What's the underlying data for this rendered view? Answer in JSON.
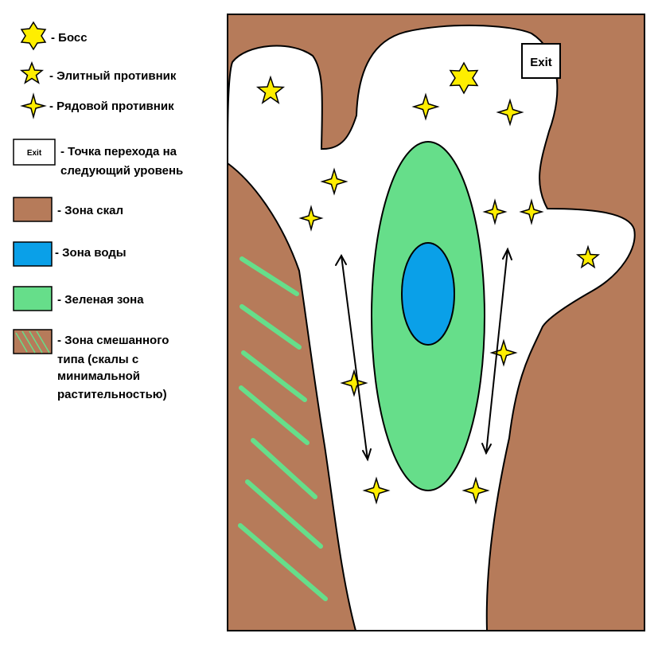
{
  "colors": {
    "rock": "#b67b5a",
    "water": "#0aa0e8",
    "green": "#66de8a",
    "star": "#ffee00",
    "outline": "#000000",
    "path": "#ffffff"
  },
  "legend": {
    "boss": "- Босс",
    "elite": "- Элитный противник",
    "regular": "- Рядовой противник",
    "exit_icon": "Exit",
    "exit_line1": "- Точка перехода на",
    "exit_line2": "следующий уровень",
    "rock": "- Зона скал",
    "water": "- Зона воды",
    "green": "- Зеленая зона",
    "mixed_line1": "- Зона смешанного",
    "mixed_line2": "типа (скалы с",
    "mixed_line3": "минимальной",
    "mixed_line4": "растительностью)"
  },
  "map": {
    "exit_label": "Exit"
  },
  "icons": {
    "boss": "six-point-star-icon",
    "elite": "five-point-star-icon",
    "regular": "four-point-star-icon",
    "patrol": "double-arrow-icon"
  }
}
